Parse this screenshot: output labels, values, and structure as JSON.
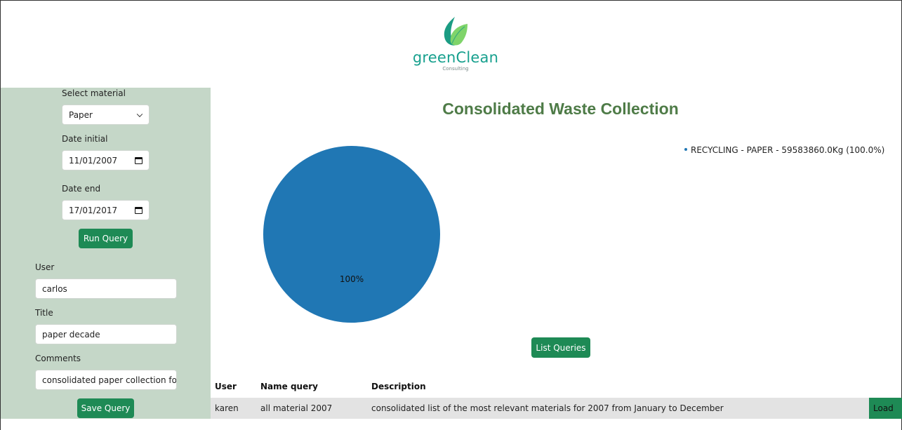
{
  "brand": {
    "name": "greenClean",
    "tagline": "Consulting",
    "colors": {
      "primary": "#17a08e",
      "leaf_dark": "#1b9c83",
      "leaf_light": "#7fd46a"
    }
  },
  "sidebar": {
    "material_label": "Select material",
    "material_value": "Paper",
    "date_initial_label": "Date initial",
    "date_initial_value": "11/01/2007",
    "date_end_label": "Date end",
    "date_end_value": "17/01/2017",
    "run_query_label": "Run Query",
    "user_label": "User",
    "user_value": "carlos",
    "title_label": "Title",
    "title_value": "paper decade",
    "comments_label": "Comments",
    "comments_value": "consolidated paper collection for",
    "save_query_label": "Save Query"
  },
  "main": {
    "title": "Consolidated Waste Collection",
    "list_queries_label": "List Queries"
  },
  "chart_data": {
    "type": "pie",
    "title": "",
    "slices": [
      {
        "label": "RECYCLING - PAPER - 59583860.0Kg (100.0%)",
        "value": 59583860.0,
        "percent_label": "100%",
        "color": "#2077b4"
      }
    ],
    "legend_placement": "top-right"
  },
  "table": {
    "headers": {
      "user": "User",
      "name_query": "Name query",
      "description": "Description"
    },
    "rows": [
      {
        "user": "karen",
        "name_query": "all material 2007",
        "description": "consolidated list of the most relevant materials for 2007 from January to December",
        "action": "Load"
      }
    ]
  }
}
